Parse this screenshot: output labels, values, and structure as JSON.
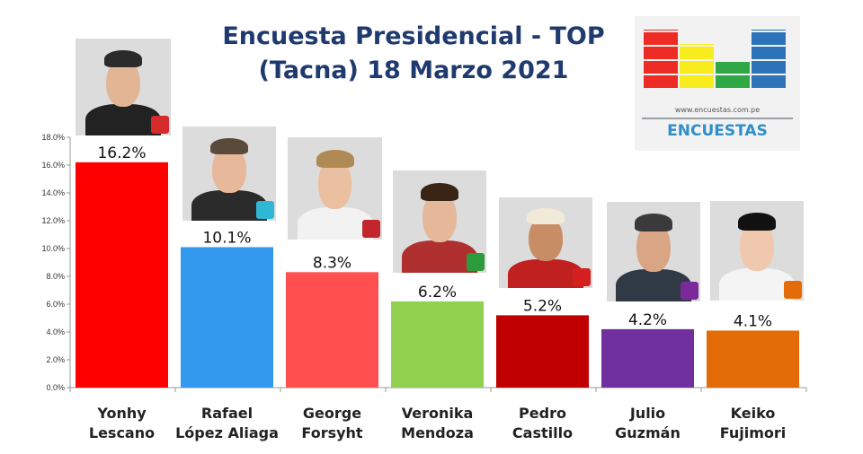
{
  "title_lines": [
    "Encuesta Presidencial - TOP",
    "(Tacna) 18 Marzo 2021"
  ],
  "logo": {
    "url": "www.encuestas.com.pe",
    "name": "ENCUESTAS",
    "bar_colors": [
      "#ee2b24",
      "#f8ec1c",
      "#2fa845",
      "#2d73b9"
    ],
    "bar_levels": [
      1.0,
      0.75,
      0.45,
      1.0
    ]
  },
  "chart_data": {
    "type": "bar",
    "categories": [
      [
        "Yonhy",
        "Lescano"
      ],
      [
        "Rafael",
        "López Aliaga"
      ],
      [
        "George",
        "Forsyht"
      ],
      [
        "Veronika",
        "Mendoza"
      ],
      [
        "Pedro",
        "Castillo"
      ],
      [
        "Julio",
        "Guzmán"
      ],
      [
        "Keiko",
        "Fujimori"
      ]
    ],
    "values": [
      16.2,
      10.1,
      8.3,
      6.2,
      5.2,
      4.2,
      4.1
    ],
    "value_labels": [
      "16.2%",
      "10.1%",
      "8.3%",
      "6.2%",
      "5.2%",
      "4.2%",
      "4.1%"
    ],
    "colors": [
      "#ff0000",
      "#3399ee",
      "#ff4f4f",
      "#92d050",
      "#c00000",
      "#7030a0",
      "#e36c09"
    ],
    "y_ticks": [
      "0.0%",
      "2.0%",
      "4.0%",
      "6.0%",
      "8.0%",
      "10.0%",
      "12.0%",
      "14.0%",
      "16.0%",
      "18.0%"
    ],
    "ylim": [
      0,
      18
    ],
    "grid": false
  },
  "photos": [
    {
      "skin": "#e2b595",
      "hair": "#2b2b2b",
      "suit": "#222222",
      "badge": "#d62b2b"
    },
    {
      "skin": "#e7b89a",
      "hair": "#5a4a3a",
      "suit": "#2b2b2b",
      "badge": "#2eb8d6"
    },
    {
      "skin": "#eac0a0",
      "hair": "#b08a55",
      "suit": "#f2f2f2",
      "badge": "#c0262c"
    },
    {
      "skin": "#e5b899",
      "hair": "#3a2415",
      "suit": "#b03030",
      "badge": "#2c9b3a"
    },
    {
      "skin": "#c98d66",
      "hair": "#f2ead8",
      "suit": "#c02020",
      "badge": "#d62020"
    },
    {
      "skin": "#d9a585",
      "hair": "#3a3a3a",
      "suit": "#303a46",
      "badge": "#7a2a9a"
    },
    {
      "skin": "#efc8ad",
      "hair": "#111111",
      "suit": "#f4f4f4",
      "badge": "#e36c09"
    }
  ]
}
